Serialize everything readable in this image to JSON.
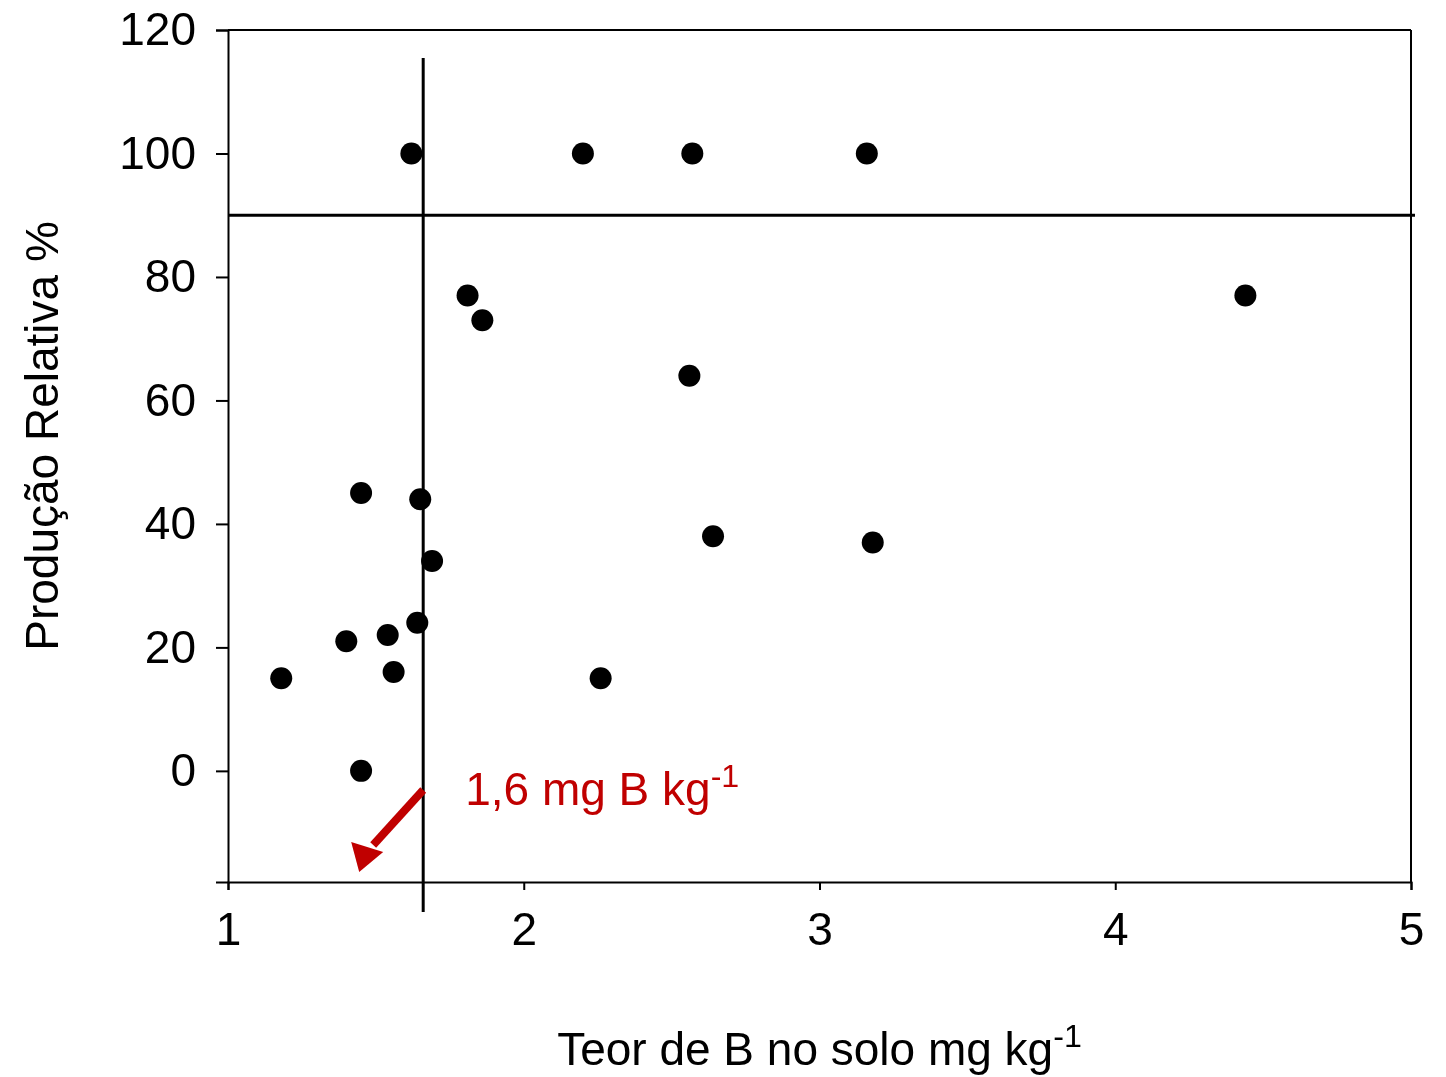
{
  "chart_data": {
    "type": "scatter",
    "xlabel": "Teor de B no solo mg kg$^{-1}$",
    "ylabel": "Produção Relativa %",
    "xlim": [
      1,
      5
    ],
    "xticks": [
      1,
      2,
      3,
      4,
      5
    ],
    "ylim": [
      -18,
      120
    ],
    "yticks": [
      0,
      20,
      40,
      60,
      80,
      100,
      120
    ],
    "grid": false,
    "marker": "circle",
    "series": [
      {
        "color": "#000000",
        "x": [
          1.18,
          1.4,
          1.45,
          1.45,
          1.54,
          1.56,
          1.62,
          1.64,
          1.65,
          1.69,
          1.81,
          1.86,
          2.2,
          2.26,
          2.56,
          2.57,
          2.64,
          3.16,
          3.18,
          4.44
        ],
        "values": [
          15,
          21,
          45,
          0,
          22,
          16,
          100,
          24,
          44,
          34,
          77,
          73,
          100,
          15,
          64,
          100,
          38,
          100,
          37,
          77
        ]
      }
    ],
    "ref_lines": [
      {
        "axis": "x",
        "value": 1.66,
        "label": "1,6 mg B kg$^{-1}$"
      },
      {
        "axis": "y",
        "value": 90
      }
    ]
  }
}
